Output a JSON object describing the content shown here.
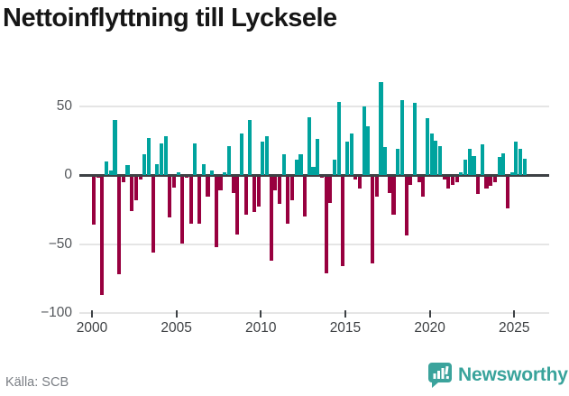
{
  "title": "Nettoinflyttning till Lycksele",
  "footer": {
    "source": "Källa: SCB",
    "brand_name": "Newsworthy"
  },
  "colors": {
    "positive": "#00A39E",
    "negative": "#98003F",
    "axis": "#3E4245",
    "grid": "#E5E5E5",
    "title": "#161616",
    "y_label": "#53565A",
    "x_label": "#3F4245",
    "source_text": "#7A7E84",
    "brand": "#39A39B",
    "background": "#FFFFFF"
  },
  "chart_data": {
    "type": "bar",
    "title": "Nettoinflyttning till Lycksele",
    "x_start": 2000,
    "x_interval": "quarter",
    "x_tick_years": [
      2000,
      2005,
      2010,
      2015,
      2020,
      2025
    ],
    "x_tick_labels": [
      "2000",
      "2005",
      "2010",
      "2015",
      "2020",
      "2025"
    ],
    "y_ticks": [
      {
        "label": "50",
        "value": 50
      },
      {
        "label": "0",
        "value": 0
      },
      {
        "label": "−50",
        "value": -50
      },
      {
        "label": "−100",
        "value": -100
      }
    ],
    "ylim": [
      -100,
      70
    ],
    "grid": "horizontal",
    "legend_position": "none",
    "positive_color": "#00A39E",
    "negative_color": "#98003F",
    "values": [
      -35,
      -1,
      -86,
      10,
      3,
      40,
      -71,
      -4,
      7,
      -25,
      -17,
      -2,
      15,
      27,
      -55,
      8,
      23,
      28,
      -30,
      -8,
      2,
      -49,
      -1,
      -34,
      23,
      -34,
      8,
      -15,
      3,
      -51,
      -10,
      2,
      21,
      -12,
      -42,
      30,
      -28,
      40,
      -26,
      -22,
      24,
      28,
      -61,
      -10,
      -20,
      15,
      -34,
      -17,
      11,
      15,
      -29,
      42,
      6,
      26,
      -1,
      -70,
      -19,
      11,
      53,
      -65,
      24,
      30,
      -2,
      -9,
      50,
      35,
      -63,
      -15,
      67,
      20,
      -12,
      -28,
      19,
      54,
      -43,
      -6,
      52,
      -4,
      -15,
      41,
      30,
      25,
      21,
      -2,
      -9,
      -6,
      -4,
      2,
      11,
      19,
      14,
      -13,
      22,
      -9,
      -7,
      -4,
      13,
      16,
      -23,
      2,
      24,
      19,
      12
    ]
  }
}
